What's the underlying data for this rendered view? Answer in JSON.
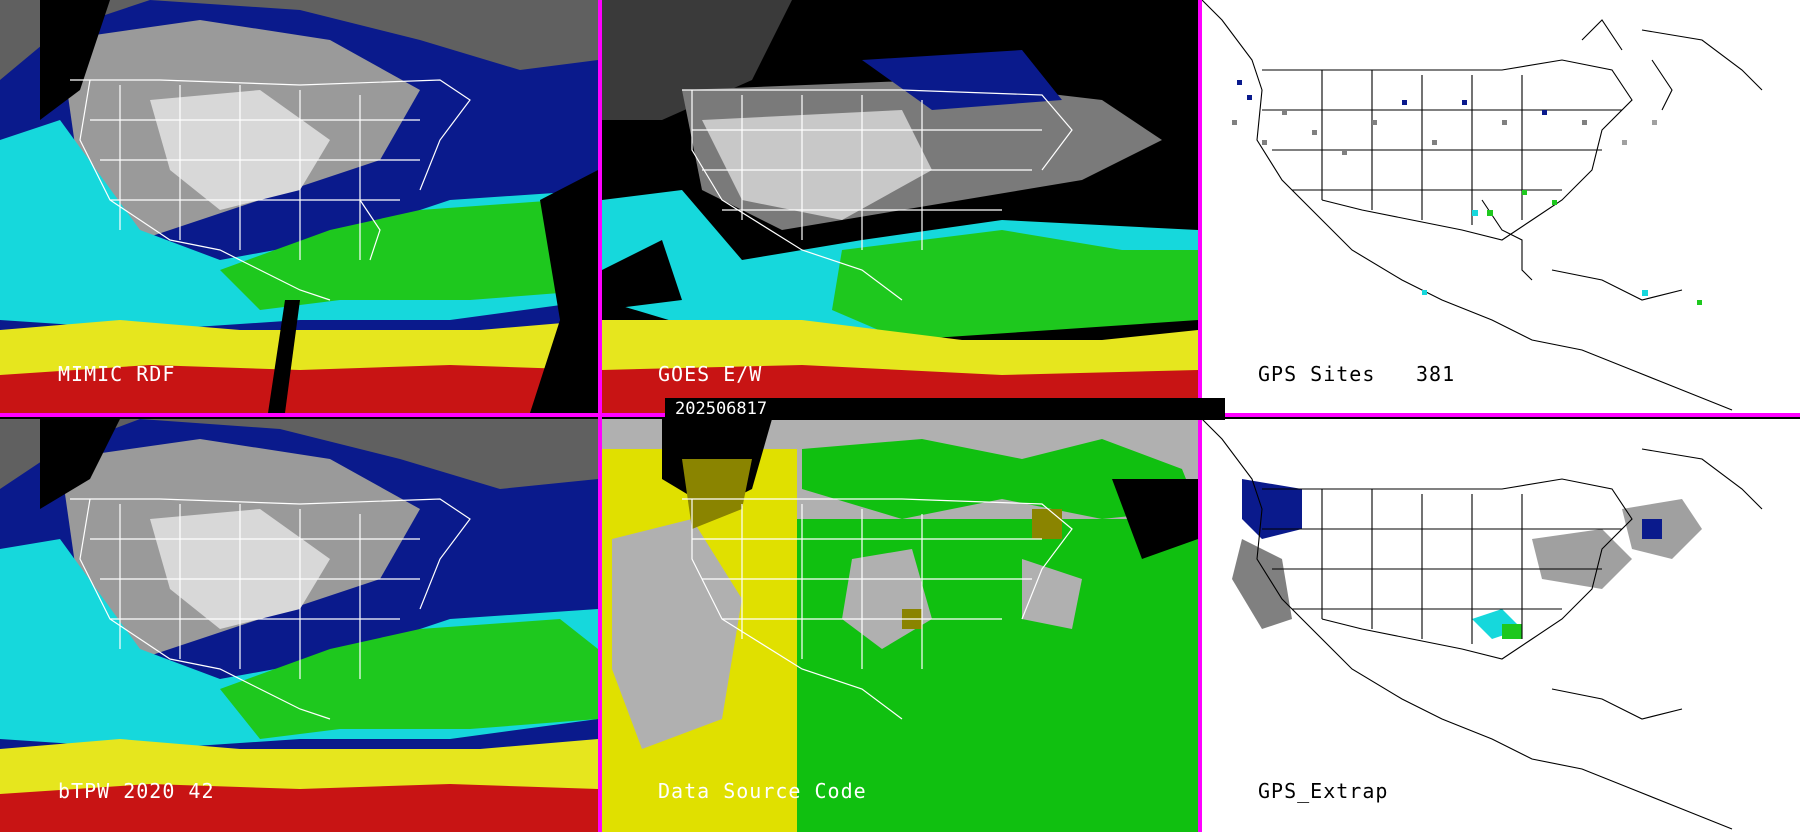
{
  "panels": {
    "mimic": {
      "label": "MIMIC RDF"
    },
    "goes": {
      "label": "GOES E/W"
    },
    "gps_sites": {
      "label": "GPS Sites",
      "count": "381"
    },
    "btpw": {
      "label": "bTPW 2020 42"
    },
    "source": {
      "label": "Data Source Code"
    },
    "gps_extrap": {
      "label": "GPS_Extrap"
    }
  },
  "timestamp": "202506817",
  "colors": {
    "divider": "#ff00ff",
    "palette_dry_grey": "#8a8a8a",
    "palette_navy": "#0a1a8c",
    "palette_blue": "#1e3cc8",
    "palette_cyan": "#16d8dc",
    "palette_green": "#1ec81e",
    "palette_yellow": "#e6e61e",
    "palette_red": "#c81414",
    "source_yellow": "#e0e000",
    "source_green": "#10c010",
    "source_grey": "#b0b0b0"
  }
}
